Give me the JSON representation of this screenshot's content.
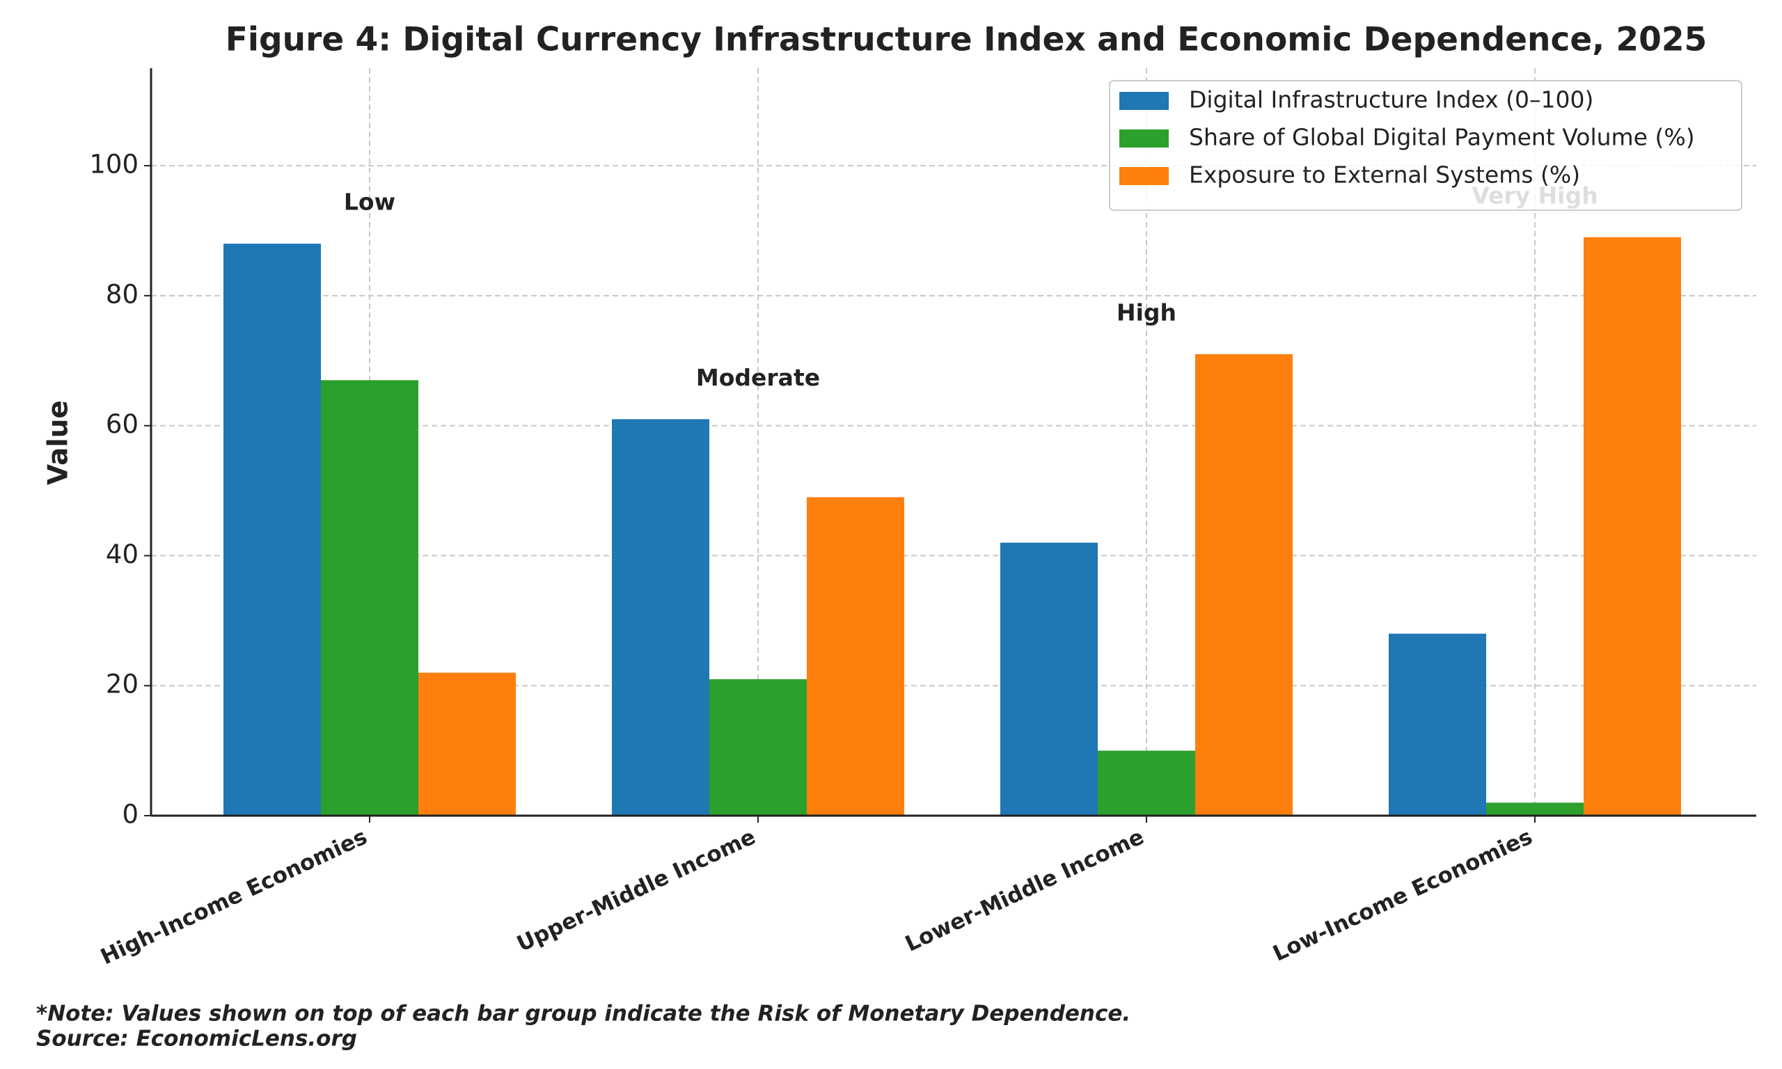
{
  "chart_data": {
    "type": "bar",
    "title": "Figure 4: Digital Currency Infrastructure Index and Economic Dependence, 2025",
    "y_label": "Value",
    "categories": [
      "High-Income Economies",
      "Upper-Middle Income",
      "Lower-Middle Income",
      "Low-Income Economies"
    ],
    "series": [
      {
        "name": "Digital Infrastructure Index (0–100)",
        "color": "#1f77b4",
        "values": [
          88,
          61,
          42,
          28
        ]
      },
      {
        "name": "Share of Global Digital Payment Volume (%)",
        "color": "#2ca02c",
        "values": [
          67,
          21,
          10,
          2
        ]
      },
      {
        "name": "Exposure to External Systems (%)",
        "color": "#ff7f0e",
        "values": [
          22,
          49,
          71,
          89
        ]
      }
    ],
    "annotations": [
      "Low",
      "Moderate",
      "High",
      "Very High"
    ],
    "ylim": [
      0,
      115
    ],
    "yticks": [
      0,
      20,
      40,
      60,
      80,
      100
    ],
    "grid": true,
    "legend": "upper right",
    "note": [
      "*Note: Values shown on top of each bar group indicate the Risk of Monetary Dependence.",
      "Source: EconomicLens.org"
    ]
  }
}
